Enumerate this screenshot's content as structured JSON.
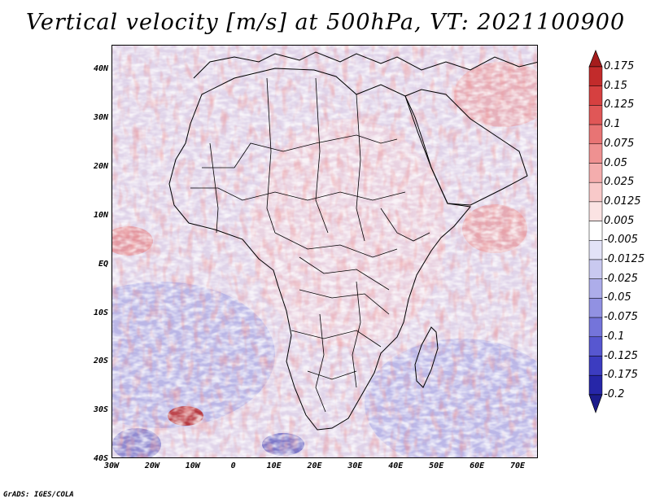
{
  "title": "Vertical velocity [m/s] at 500hPa, VT: 2021100900",
  "credit": "GrADS: IGES/COLA",
  "map": {
    "region": "Africa",
    "lon_range": [
      -30,
      76
    ],
    "lat_range": [
      -40,
      45
    ],
    "lat_labels": [
      "40N",
      "30N",
      "20N",
      "10N",
      "EQ",
      "10S",
      "20S",
      "30S",
      "40S"
    ],
    "lon_labels": [
      "30W",
      "20W",
      "10W",
      "0",
      "10E",
      "20E",
      "30E",
      "40E",
      "50E",
      "60E",
      "70E"
    ],
    "land_outline_color": "#000000"
  },
  "colorbar": {
    "levels": [
      "0.175",
      "0.15",
      "0.125",
      "0.1",
      "0.075",
      "0.05",
      "0.025",
      "0.0125",
      "0.005",
      "-0.005",
      "-0.0125",
      "-0.025",
      "-0.05",
      "-0.075",
      "-0.1",
      "-0.125",
      "-0.175",
      "-0.2"
    ],
    "colors": [
      "#a51c1c",
      "#c22b2b",
      "#d64040",
      "#e05757",
      "#e87474",
      "#ef9191",
      "#f4adad",
      "#f8c9c9",
      "#fbe3e3",
      "#ffffff",
      "#e3e3f7",
      "#c9c9f0",
      "#adadea",
      "#9191e2",
      "#7474da",
      "#5757d0",
      "#3c3cc0",
      "#2626a8",
      "#1c1c8c"
    ]
  }
}
